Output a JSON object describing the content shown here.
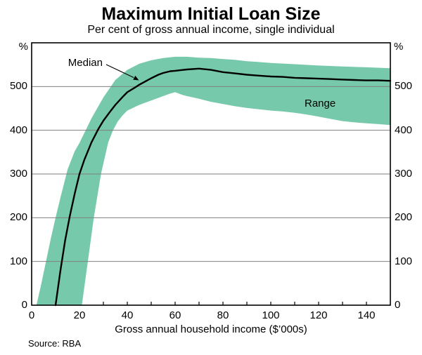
{
  "chart_data": {
    "type": "area",
    "title": "Maximum Initial Loan Size",
    "subtitle": "Per cent of gross annual income, single individual",
    "xlabel": "Gross annual household income ($’000s)",
    "ylabel_left": "%",
    "ylabel_right": "%",
    "source": "Source: RBA",
    "xlim": [
      0,
      150
    ],
    "ylim": [
      0,
      600
    ],
    "x_tick_labels": [
      0,
      20,
      40,
      60,
      80,
      100,
      120,
      140
    ],
    "x_tick_marks": [
      10,
      20,
      30,
      40,
      50,
      60,
      70,
      80,
      90,
      100,
      110,
      120,
      130,
      140
    ],
    "y_tick_labels": [
      0,
      100,
      200,
      300,
      400,
      500
    ],
    "y_gridlines": [
      100,
      200,
      300,
      400,
      500
    ],
    "grid": "horizontal",
    "legend_position": "inline-annotations",
    "annotations": {
      "median": "Median",
      "range": "Range"
    },
    "colors": {
      "band": "#77C9AB",
      "median_line": "#000000",
      "gridline": "#7f7f7f",
      "frame": "#000000"
    },
    "series": [
      {
        "name": "Range",
        "type": "band",
        "upper": [
          [
            2,
            0
          ],
          [
            4,
            48
          ],
          [
            6,
            100
          ],
          [
            8,
            152
          ],
          [
            10,
            200
          ],
          [
            12,
            245
          ],
          [
            15,
            310
          ],
          [
            18,
            352
          ],
          [
            20,
            371
          ],
          [
            25,
            427
          ],
          [
            30,
            475
          ],
          [
            35,
            515
          ],
          [
            40,
            538
          ],
          [
            45,
            552
          ],
          [
            50,
            560
          ],
          [
            55,
            565
          ],
          [
            60,
            568
          ],
          [
            65,
            568
          ],
          [
            70,
            566
          ],
          [
            75,
            565
          ],
          [
            80,
            563
          ],
          [
            85,
            561
          ],
          [
            90,
            558
          ],
          [
            95,
            556
          ],
          [
            100,
            554
          ],
          [
            110,
            551
          ],
          [
            120,
            548
          ],
          [
            130,
            546
          ],
          [
            140,
            544
          ],
          [
            150,
            542
          ]
        ],
        "lower": [
          [
            21,
            0
          ],
          [
            23.5,
            100
          ],
          [
            26,
            200
          ],
          [
            29,
            300
          ],
          [
            32,
            372
          ],
          [
            34,
            400
          ],
          [
            36,
            420
          ],
          [
            38,
            434
          ],
          [
            40,
            445
          ],
          [
            45,
            458
          ],
          [
            50,
            468
          ],
          [
            55,
            478
          ],
          [
            58,
            484
          ],
          [
            60,
            487
          ],
          [
            63,
            481
          ],
          [
            65,
            478
          ],
          [
            70,
            472
          ],
          [
            75,
            465
          ],
          [
            80,
            460
          ],
          [
            85,
            455
          ],
          [
            90,
            451
          ],
          [
            95,
            448
          ],
          [
            100,
            445
          ],
          [
            105,
            443
          ],
          [
            110,
            440
          ],
          [
            115,
            436
          ],
          [
            120,
            431
          ],
          [
            125,
            426
          ],
          [
            130,
            421
          ],
          [
            135,
            418
          ],
          [
            140,
            416
          ],
          [
            145,
            414
          ],
          [
            150,
            412
          ]
        ]
      },
      {
        "name": "Median",
        "type": "line",
        "points": [
          [
            10,
            0
          ],
          [
            12,
            78
          ],
          [
            14,
            148
          ],
          [
            16,
            205
          ],
          [
            18,
            255
          ],
          [
            20,
            300
          ],
          [
            22,
            332
          ],
          [
            25,
            372
          ],
          [
            28,
            404
          ],
          [
            30,
            422
          ],
          [
            33,
            444
          ],
          [
            35,
            458
          ],
          [
            38,
            476
          ],
          [
            40,
            487
          ],
          [
            43,
            497
          ],
          [
            45,
            504
          ],
          [
            48,
            513
          ],
          [
            50,
            519
          ],
          [
            53,
            527
          ],
          [
            55,
            531
          ],
          [
            58,
            535
          ],
          [
            60,
            536
          ],
          [
            65,
            539
          ],
          [
            70,
            541
          ],
          [
            75,
            538
          ],
          [
            80,
            533
          ],
          [
            85,
            530
          ],
          [
            90,
            527
          ],
          [
            95,
            525
          ],
          [
            100,
            523
          ],
          [
            105,
            522
          ],
          [
            110,
            520
          ],
          [
            115,
            519
          ],
          [
            120,
            518
          ],
          [
            125,
            517
          ],
          [
            130,
            516
          ],
          [
            135,
            515
          ],
          [
            140,
            514
          ],
          [
            145,
            514
          ],
          [
            150,
            513
          ]
        ]
      }
    ]
  }
}
